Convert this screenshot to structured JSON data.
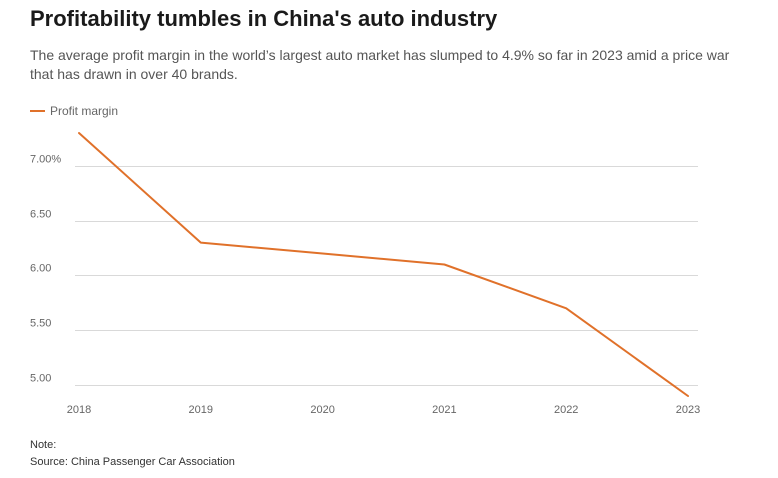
{
  "header": {
    "title": "Profitability tumbles in China's auto industry",
    "subtitle": "The average profit margin in the world’s largest auto market has slumped to 4.9% so far in 2023 amid a price war that has drawn in over 40 brands."
  },
  "footer": {
    "note": "Note:",
    "source": "Source: China Passenger Car Association"
  },
  "colors": {
    "series": "#e0712a",
    "grid": "#d9d9d9",
    "tick_text": "#666666"
  },
  "chart_data": {
    "type": "line",
    "title": "Profitability tumbles in China's auto industry",
    "xlabel": "",
    "ylabel": "",
    "x": [
      2018,
      2019,
      2020,
      2021,
      2022,
      2023
    ],
    "x_tick_labels": [
      "2018",
      "2019",
      "2020",
      "2021",
      "2022",
      "2023"
    ],
    "series": [
      {
        "name": "Profit margin",
        "values": [
          7.3,
          6.3,
          6.2,
          6.1,
          5.7,
          4.9
        ]
      }
    ],
    "y_ticks": [
      5.0,
      5.5,
      6.0,
      6.5,
      7.0
    ],
    "y_tick_labels": [
      "5.00",
      "5.50",
      "6.00",
      "6.50",
      "7.00%"
    ],
    "ylim": [
      4.9,
      7.3
    ],
    "grid": "horizontal",
    "legend": "top-left"
  }
}
